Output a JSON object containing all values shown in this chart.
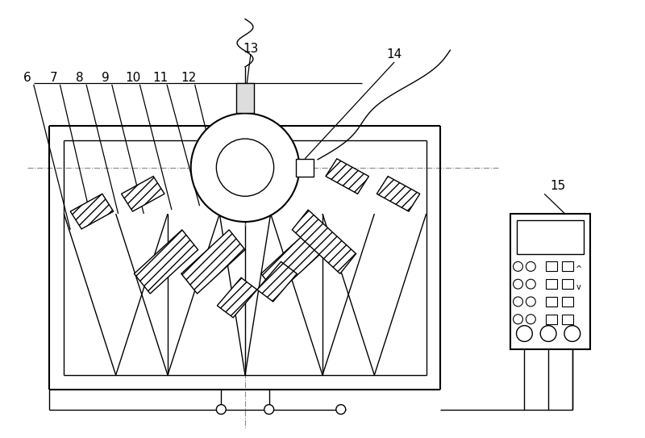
{
  "bg_color": "#ffffff",
  "line_color": "#000000",
  "fig_w": 8.0,
  "fig_h": 5.43,
  "dpi": 100,
  "labels": [
    "6",
    "7",
    "8",
    "9",
    "10",
    "11",
    "12",
    "13",
    "14",
    "15"
  ],
  "label_fontsize": 11
}
